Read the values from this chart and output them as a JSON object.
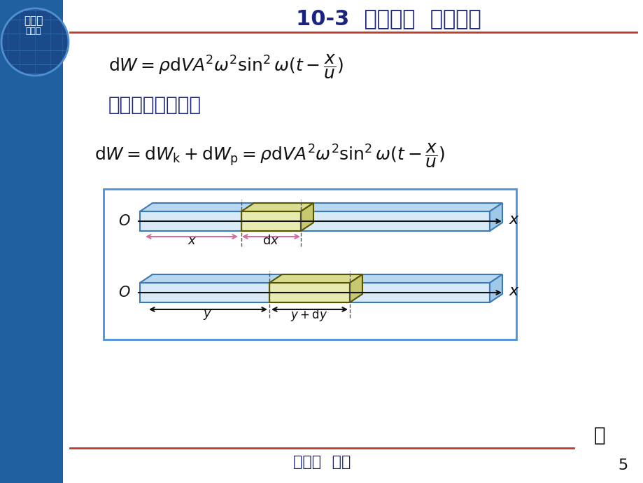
{
  "title": "10-3  波的能量  能流密度",
  "title_color": "#1a237e",
  "title_fontsize": 22,
  "bg_color": "#f0f4f8",
  "main_bg": "#ffffff",
  "header_line_color": "#c0392b",
  "top_left_text1": "物理学",
  "top_left_text2": "第五版",
  "formula1": "dW = \\rho \\mathrm{d}V A^{2} \\omega^{2} \\sin^{2} \\omega(t - \\dfrac{x}{u})",
  "section_label": "体积元的总机械能",
  "formula2": "\\mathrm{d}W = \\mathrm{d}W_{\\mathrm{k}} + \\mathrm{d}W_{\\mathrm{p}} = \\rho \\mathrm{d}V A^{2} \\omega^{2} \\sin^{2} \\omega(t - \\dfrac{x}{u})",
  "footer_text": "第十章  波动",
  "page_number": "5",
  "box_border_color": "#4a90d9",
  "beam_color": "#3d7ab5",
  "element_fill": "#e8ebb0",
  "arrow_color_pink": "#d070a0",
  "arrow_color_black": "#222222",
  "dashed_line_color": "#555555"
}
